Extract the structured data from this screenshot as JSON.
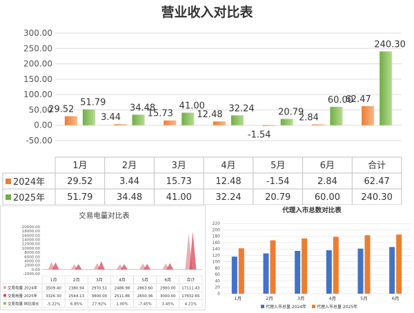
{
  "chart_data": [
    {
      "type": "bar",
      "title": "营业收入对比表",
      "categories": [
        "1月",
        "2月",
        "3月",
        "4月",
        "5月",
        "6月",
        "合计"
      ],
      "series": [
        {
          "name": "2024年",
          "values": [
            29.52,
            3.44,
            15.73,
            12.48,
            -1.54,
            2.84,
            62.47
          ],
          "labels": [
            "29.52",
            "3.44",
            "15.73",
            "12.48",
            "-1.54",
            "2.84",
            "62.47"
          ],
          "color": "#ed7d31"
        },
        {
          "name": "2025年",
          "values": [
            51.79,
            34.48,
            41.0,
            32.24,
            20.79,
            60.0,
            240.3
          ],
          "labels": [
            "51.79",
            "34.48",
            "41.00",
            "32.24",
            "20.79",
            "60.00",
            "240.30"
          ],
          "color": "#70ad47"
        }
      ],
      "yticks": [
        "300.00",
        "250.00",
        "200.00",
        "150.00",
        "100.00",
        "50.00",
        "0.00",
        "-50.00"
      ],
      "ylim": [
        -50,
        300
      ],
      "legend": "data-table"
    },
    {
      "type": "area",
      "title": "交易电量对比表",
      "categories": [
        "1月",
        "2月",
        "3月",
        "4月",
        "5月",
        "6月",
        "合计"
      ],
      "series": [
        {
          "name": "交易电量 2024年",
          "values": [
            3509.4,
            2380.94,
            2970.51,
            2486.98,
            2863.6,
            2900.0,
            17111.43
          ],
          "labels": [
            "3509.40",
            "2380.94",
            "2970.51",
            "2486.98",
            "2863.60",
            "2900.00",
            "17111.43"
          ],
          "color": "#e8a7ad"
        },
        {
          "name": "交易电量 2025年",
          "values": [
            3326.3,
            2544.13,
            3800.0,
            2511.86,
            2650.36,
            3000.0,
            17832.65
          ],
          "labels": [
            "3326.30",
            "2544.13",
            "3800.00",
            "2511.86",
            "2650.36",
            "3000.00",
            "17832.65"
          ],
          "color": "#d9475a"
        },
        {
          "name": "交易电量 同比增长",
          "values": [
            -5.22,
            6.85,
            27.92,
            1.0,
            -7.45,
            3.45,
            4.21
          ],
          "labels": [
            "-5.22%",
            "6.85%",
            "27.92%",
            "1.00%",
            "-7.45%",
            "3.45%",
            "4.21%"
          ],
          "color": "#9bbb59"
        }
      ],
      "yticks": [
        "20000.00",
        "18000.00",
        "16000.00",
        "14000.00",
        "12000.00",
        "10000.00",
        "8000.00",
        "6000.00",
        "4000.00",
        "2000.00",
        "0.00",
        "-2000.00"
      ],
      "ylim": [
        -2000,
        20000
      ],
      "legend": "data-table"
    },
    {
      "type": "bar",
      "title": "代理入市总数对比表",
      "categories": [
        "1月",
        "2月",
        "3月",
        "4月",
        "5月",
        "6月"
      ],
      "series": [
        {
          "name": "代理入市总量 2024年",
          "values": [
            116,
            126,
            134,
            136,
            141,
            146
          ],
          "color": "#4472c4"
        },
        {
          "name": "代理入市总量 2025年",
          "values": [
            142,
            167,
            173,
            178,
            183,
            185
          ],
          "color": "#ed7d31"
        }
      ],
      "yticks": [
        "220",
        "200",
        "180",
        "160",
        "140",
        "120",
        "100",
        "80",
        "60",
        "40",
        "20",
        "0"
      ],
      "ylim": [
        0,
        220
      ],
      "legend": "bottom"
    }
  ]
}
